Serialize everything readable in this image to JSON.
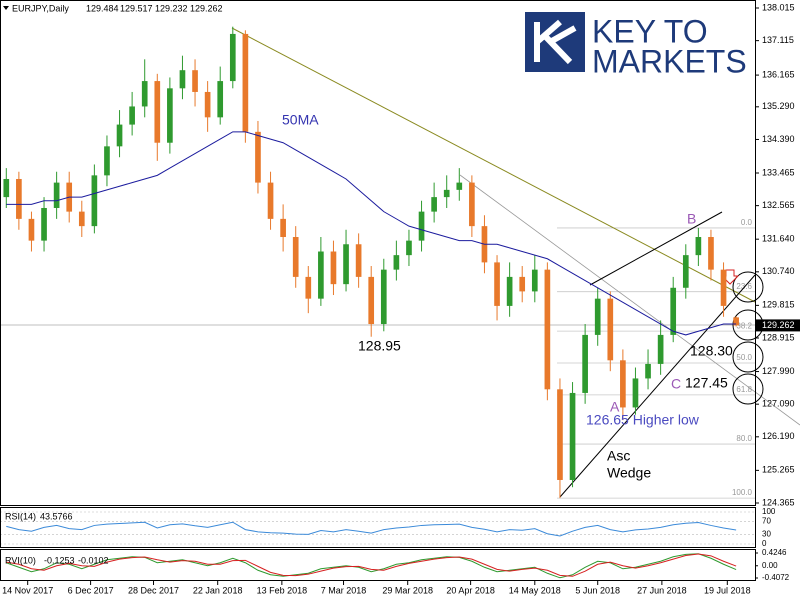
{
  "chart_data": {
    "type": "candlestick",
    "header": {
      "symbol": "EURJPY,Daily"
    },
    "xlim": [
      0,
      60
    ],
    "xticks": [
      {
        "value": 2.2,
        "label": "14 Nov 2017"
      },
      {
        "value": 7.2,
        "label": "6 Dec 2017"
      },
      {
        "value": 12.2,
        "label": "28 Dec 2017"
      },
      {
        "value": 17.3,
        "label": "22 Jan 2018"
      },
      {
        "value": 22.4,
        "label": "13 Feb 2018"
      },
      {
        "value": 27.3,
        "label": "7 Mar 2018"
      },
      {
        "value": 32.4,
        "label": "29 Mar 2018"
      },
      {
        "value": 37.4,
        "label": "20 Apr 2018"
      },
      {
        "value": 42.5,
        "label": "14 May 2018"
      },
      {
        "value": 47.5,
        "label": "5 Jun 2018"
      },
      {
        "value": 52.6,
        "label": "27 Jun 2018"
      },
      {
        "value": 57.8,
        "label": "19 Jul 2018"
      }
    ],
    "ylim": [
      124.365,
      138.015
    ],
    "yticks": [
      138.015,
      137.115,
      136.165,
      {
        "value": 135.29,
        "label": "135.290"
      },
      {
        "value": 134.39,
        "label": "134.390"
      },
      133.465,
      132.565,
      {
        "value": 131.64,
        "label": "131.640"
      },
      {
        "value": 130.74,
        "label": "130.740"
      },
      129.815,
      128.915,
      {
        "value": 127.99,
        "label": "127.990"
      },
      {
        "value": 127.09,
        "label": "127.090"
      },
      {
        "value": 126.19,
        "label": "126.190"
      },
      125.265,
      124.365
    ],
    "open": [
      132.8,
      133.3,
      132.2,
      131.6,
      132.5,
      133.2,
      132.4,
      132.0,
      133.4,
      134.2,
      134.8,
      135.3,
      136.0,
      134.3,
      135.8,
      136.3,
      135.7,
      135.0,
      136.0,
      137.3,
      134.6,
      133.2,
      132.2,
      131.7,
      130.6,
      130.0,
      131.3,
      130.4,
      131.5,
      130.6,
      129.3,
      130.8,
      131.2,
      131.6,
      132.4,
      132.8,
      133.0,
      133.2,
      132.0,
      131.0,
      129.8,
      130.6,
      130.2,
      130.8,
      127.5,
      125.0,
      127.4,
      129.0,
      130.0,
      128.3,
      127.0,
      127.8,
      128.2,
      129.0,
      130.3,
      131.2,
      131.7,
      130.8,
      129.484
    ],
    "high": [
      133.6,
      133.5,
      132.4,
      132.8,
      133.5,
      133.5,
      132.7,
      133.7,
      134.5,
      135.2,
      135.7,
      136.6,
      136.2,
      136.1,
      136.7,
      136.6,
      136.0,
      136.4,
      137.5,
      137.4,
      134.9,
      133.5,
      132.6,
      132.0,
      130.9,
      131.7,
      131.6,
      131.9,
      131.8,
      130.9,
      131.1,
      131.6,
      131.9,
      132.7,
      133.2,
      133.4,
      133.6,
      133.4,
      132.3,
      131.2,
      131.0,
      130.9,
      131.2,
      131.0,
      127.8,
      127.7,
      129.3,
      130.3,
      130.2,
      128.6,
      128.1,
      128.6,
      129.4,
      130.6,
      131.5,
      131.95,
      131.9,
      131.0,
      129.517
    ],
    "low": [
      132.5,
      131.9,
      131.3,
      131.3,
      132.2,
      132.1,
      131.7,
      131.8,
      133.1,
      133.9,
      134.5,
      135.0,
      133.8,
      134.0,
      135.5,
      135.3,
      134.6,
      134.8,
      135.8,
      134.3,
      132.9,
      131.9,
      131.3,
      130.3,
      129.6,
      129.8,
      130.1,
      130.2,
      130.3,
      128.95,
      129.1,
      130.5,
      130.9,
      131.3,
      132.1,
      132.5,
      132.7,
      131.7,
      130.7,
      129.4,
      129.5,
      129.9,
      129.9,
      127.2,
      124.5,
      124.8,
      127.1,
      128.7,
      128.0,
      126.65,
      126.8,
      127.5,
      127.9,
      128.8,
      130.0,
      130.9,
      130.5,
      129.5,
      129.232
    ],
    "close": [
      133.3,
      132.2,
      131.6,
      132.5,
      133.2,
      132.4,
      132.0,
      133.4,
      134.2,
      134.8,
      135.3,
      136.0,
      134.3,
      135.8,
      136.3,
      135.7,
      135.0,
      136.0,
      137.3,
      134.6,
      133.2,
      132.2,
      131.7,
      130.6,
      130.0,
      131.3,
      130.4,
      131.5,
      130.6,
      129.3,
      130.8,
      131.2,
      131.6,
      132.4,
      132.8,
      133.0,
      133.2,
      132.0,
      131.0,
      129.8,
      130.6,
      130.2,
      130.8,
      127.5,
      125.0,
      127.4,
      129.0,
      130.0,
      128.3,
      127.0,
      127.8,
      128.2,
      129.0,
      130.3,
      131.2,
      131.7,
      130.8,
      129.8,
      129.262
    ],
    "up_color": "#2f9a2f",
    "down_color": "#e8792b",
    "ma": {
      "name": "50MA",
      "color": "#1c1c9e",
      "values": [
        132.6,
        132.6,
        132.6,
        132.7,
        132.7,
        132.8,
        132.8,
        132.9,
        133.0,
        133.1,
        133.2,
        133.3,
        133.4,
        133.6,
        133.8,
        134.0,
        134.2,
        134.4,
        134.6,
        134.6,
        134.5,
        134.4,
        134.3,
        134.1,
        133.9,
        133.7,
        133.5,
        133.3,
        133.0,
        132.7,
        132.4,
        132.2,
        132.0,
        131.9,
        131.8,
        131.7,
        131.6,
        131.6,
        131.5,
        131.5,
        131.4,
        131.3,
        131.2,
        131.1,
        130.9,
        130.7,
        130.5,
        130.3,
        130.1,
        129.9,
        129.7,
        129.5,
        129.3,
        129.1,
        129.0,
        129.1,
        129.2,
        129.3,
        129.3
      ]
    },
    "fibonacci": {
      "high": 131.95,
      "low": 124.5,
      "levels": [
        {
          "value": 0,
          "label": "0.0"
        },
        {
          "value": 23.6,
          "label": "23.6"
        },
        {
          "value": 38.2,
          "label": "38.2"
        },
        {
          "value": 50,
          "label": "50.0"
        },
        {
          "value": 61.8,
          "label": "61.8"
        },
        {
          "value": 80,
          "label": "80.0"
        },
        {
          "value": 100,
          "label": "100.0"
        }
      ]
    },
    "annotations": [
      "128.95",
      "A",
      "B",
      "C",
      "126.65 Higher low",
      "128.30",
      "127.45",
      "Asc",
      "Wedge"
    ],
    "rsi": {
      "name": "RSI(14)",
      "color": "#3b8ad9",
      "ylim": [
        0,
        100
      ],
      "yticks": [
        100,
        70,
        30,
        0
      ],
      "values": [
        55,
        45,
        40,
        52,
        58,
        48,
        45,
        58,
        62,
        64,
        66,
        68,
        50,
        60,
        63,
        57,
        52,
        60,
        68,
        45,
        38,
        35,
        34,
        31,
        30,
        42,
        38,
        45,
        40,
        34,
        45,
        50,
        53,
        58,
        60,
        61,
        62,
        52,
        46,
        38,
        45,
        43,
        48,
        32,
        25,
        40,
        52,
        58,
        45,
        38,
        44,
        47,
        52,
        60,
        65,
        67,
        58,
        50,
        43.5766
      ]
    },
    "rvi": {
      "name": "RVI(10)",
      "ylim": [
        -0.4072,
        0.4246
      ],
      "yticks": [
        0.4246,
        {
          "value": 0,
          "label": "0.00"
        },
        -0.4072
      ],
      "series": [
        {
          "color": "#2f9a2f",
          "values": [
            0.1,
            -0.05,
            -0.2,
            -0.1,
            0.1,
            0.05,
            -0.1,
            0.05,
            0.2,
            0.25,
            0.3,
            0.28,
            0.1,
            0.15,
            0.2,
            0.1,
            0,
            0.1,
            0.25,
            0.1,
            -0.15,
            -0.3,
            -0.35,
            -0.3,
            -0.25,
            -0.1,
            -0.05,
            0,
            -0.05,
            -0.2,
            -0.1,
            0.05,
            0.1,
            0.2,
            0.25,
            0.3,
            0.28,
            0.15,
            -0.05,
            -0.2,
            -0.15,
            -0.1,
            -0.05,
            -0.25,
            -0.4,
            -0.3,
            -0.05,
            0.15,
            0.1,
            -0.1,
            -0.05,
            0.05,
            0.15,
            0.3,
            0.38,
            0.4,
            0.25,
            0.05,
            -0.1253
          ]
        },
        {
          "color": "#d62020",
          "values": [
            0.12,
            0.05,
            -0.1,
            -0.15,
            0,
            0.08,
            0,
            -0.02,
            0.12,
            0.22,
            0.27,
            0.29,
            0.2,
            0.12,
            0.17,
            0.15,
            0.05,
            0.05,
            0.17,
            0.18,
            -0.02,
            -0.22,
            -0.32,
            -0.33,
            -0.28,
            -0.18,
            -0.08,
            -0.03,
            -0.02,
            -0.12,
            -0.15,
            -0.02,
            0.08,
            0.15,
            0.22,
            0.27,
            0.29,
            0.22,
            0.05,
            -0.12,
            -0.18,
            -0.12,
            -0.08,
            -0.15,
            -0.32,
            -0.35,
            -0.18,
            0.05,
            0.12,
            0,
            -0.08,
            0,
            0.1,
            0.22,
            0.34,
            0.39,
            0.33,
            0.15,
            -0.0102
          ]
        }
      ]
    }
  },
  "logo": {
    "line1": "KEY TO",
    "line2": "MARKETS"
  }
}
